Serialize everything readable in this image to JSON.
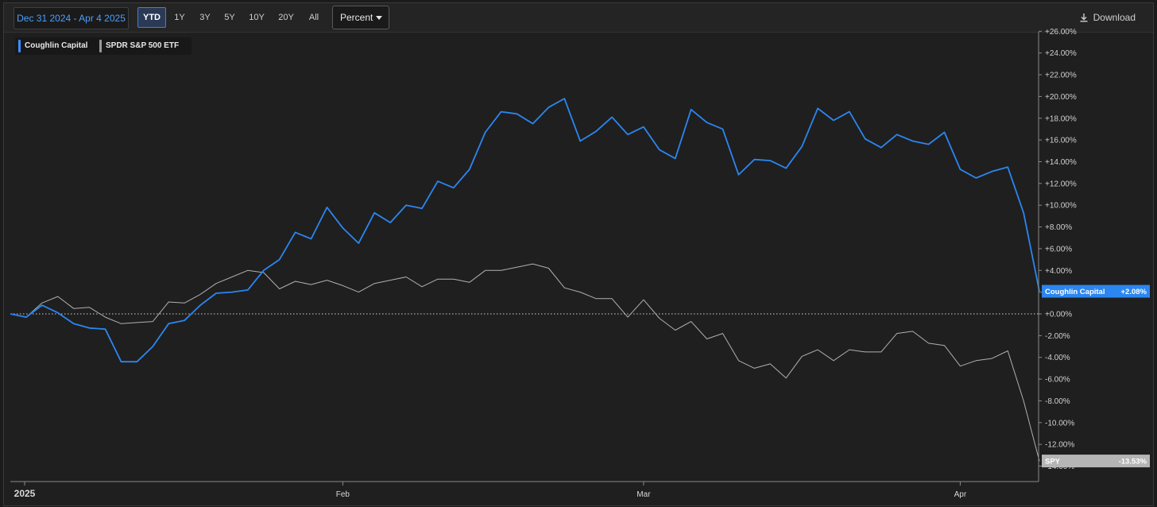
{
  "toolbar": {
    "date_range": "Dec 31 2024 - Apr 4 2025",
    "ranges": [
      "YTD",
      "1Y",
      "3Y",
      "5Y",
      "10Y",
      "20Y",
      "All"
    ],
    "active_range": "YTD",
    "mode": "Percent",
    "download_label": "Download"
  },
  "legend": {
    "items": [
      {
        "label": "Coughlin Capital",
        "color": "#3d8eff"
      },
      {
        "label": "SPDR S&P 500 ETF",
        "color": "#9a9a9a"
      }
    ]
  },
  "colors": {
    "primary": "#2b86f0",
    "secondary": "#b0b0b0",
    "background": "#1f1f1f"
  },
  "chart_data": {
    "type": "line",
    "x_labels": [
      "2025",
      "Feb",
      "Mar",
      "Apr"
    ],
    "y_ticks": [
      "+26.00%",
      "+24.00%",
      "+22.00%",
      "+20.00%",
      "+18.00%",
      "+16.00%",
      "+14.00%",
      "+12.00%",
      "+10.00%",
      "+8.00%",
      "+6.00%",
      "+4.00%",
      "+2.00%",
      "+0.00%",
      "-2.00%",
      "-4.00%",
      "-6.00%",
      "-8.00%",
      "-10.00%",
      "-12.00%",
      "-14.00%"
    ],
    "ylim": [
      -14,
      26
    ],
    "zero_line": true,
    "series": [
      {
        "name": "Coughlin Capital",
        "end_label": "Coughlin Capital",
        "end_value": "+2.08%",
        "values": [
          0,
          -0.3,
          0.8,
          0.1,
          -0.9,
          -1.3,
          -1.4,
          -4.4,
          -4.4,
          -3.0,
          -0.9,
          -0.6,
          0.8,
          1.9,
          2.0,
          2.2,
          4.0,
          5.0,
          7.5,
          6.9,
          9.8,
          7.9,
          6.5,
          9.3,
          8.4,
          10.0,
          9.7,
          12.2,
          11.6,
          13.3,
          16.7,
          18.6,
          18.4,
          17.5,
          19.0,
          19.8,
          15.9,
          16.8,
          18.1,
          16.5,
          17.2,
          15.1,
          14.3,
          18.8,
          17.6,
          17.0,
          12.8,
          14.2,
          14.1,
          13.4,
          15.4,
          18.9,
          17.8,
          18.6,
          16.1,
          15.3,
          16.5,
          15.9,
          15.6,
          16.7,
          13.3,
          12.5,
          13.1,
          13.5,
          9.3,
          2.08
        ]
      },
      {
        "name": "SPDR S&P 500 ETF",
        "end_label": "SPY",
        "end_value": "-13.53%",
        "values": [
          0,
          -0.3,
          1.0,
          1.6,
          0.5,
          0.6,
          -0.3,
          -0.9,
          -0.8,
          -0.7,
          1.1,
          1.0,
          1.8,
          2.8,
          3.4,
          4.0,
          3.8,
          2.3,
          3.0,
          2.7,
          3.1,
          2.6,
          2.0,
          2.8,
          3.1,
          3.4,
          2.5,
          3.2,
          3.2,
          2.9,
          4.0,
          4.0,
          4.3,
          4.6,
          4.2,
          2.4,
          2.0,
          1.4,
          1.4,
          -0.3,
          1.3,
          -0.4,
          -1.5,
          -0.7,
          -2.3,
          -1.8,
          -4.3,
          -5.0,
          -4.6,
          -5.9,
          -3.9,
          -3.3,
          -4.3,
          -3.3,
          -3.5,
          -3.5,
          -1.8,
          -1.6,
          -2.7,
          -2.9,
          -4.8,
          -4.3,
          -4.1,
          -3.4,
          -8.0,
          -13.53
        ]
      }
    ]
  }
}
